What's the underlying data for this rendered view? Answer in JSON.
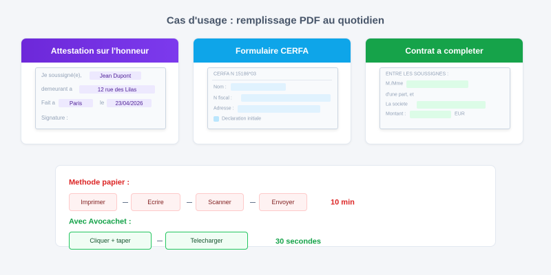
{
  "title": "Cas d'usage : remplissage PDF au quotidien",
  "cards": [
    {
      "title": "Attestation sur l'honneur",
      "lines": [
        {
          "label": "Je soussigné(e),",
          "value": "Jean Dupont"
        },
        {
          "label": "demeurant a",
          "value": "12 rue des Lilas"
        },
        {
          "label": "Fait a",
          "value": "Paris",
          "label2": "le",
          "value2": "23/04/2026"
        },
        {
          "label": "Signature :"
        }
      ]
    },
    {
      "title": "Formulaire CERFA",
      "header": "CERFA N 15186*03",
      "fields": [
        "Nom :",
        "N fiscal :",
        "Adresse :"
      ],
      "checkbox": "Declaration initiale"
    },
    {
      "title": "Contrat a completer",
      "header": "ENTRE LES SOUSSIGNES :",
      "lines": [
        "M./Mme",
        "d'une part, et",
        "La societe",
        "Montant :"
      ],
      "suffix": "EUR"
    }
  ],
  "comparison": {
    "paper": {
      "label": "Methode papier :",
      "steps": [
        "Imprimer",
        "Ecrire",
        "Scanner",
        "Envoyer"
      ],
      "time": "10 min"
    },
    "digital": {
      "label": "Avec Avocachet :",
      "steps": [
        "Cliquer + taper",
        "Telecharger"
      ],
      "time": "30 secondes"
    }
  }
}
